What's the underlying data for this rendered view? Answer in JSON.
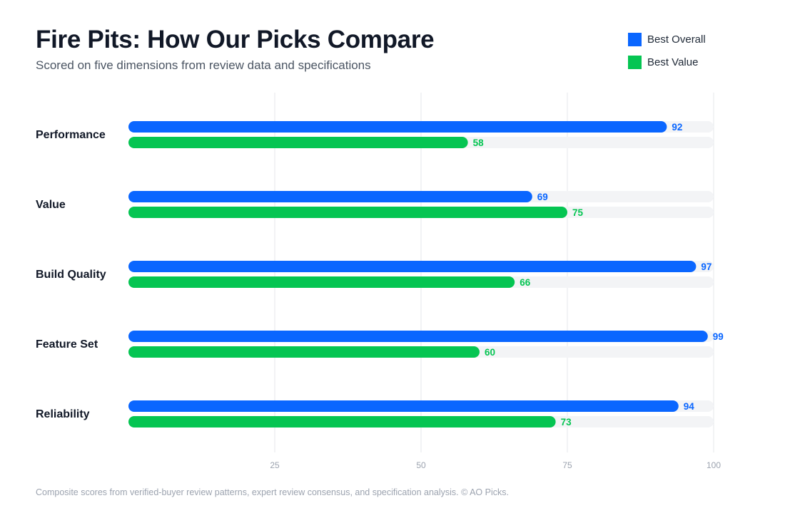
{
  "title": "Fire Pits: How Our Picks Compare",
  "subtitle": "Scored on five dimensions from review data and specifications",
  "footnote": "Composite scores from verified-buyer review patterns, expert review consensus, and specification analysis. © AO Picks.",
  "colors": {
    "best_overall": "#0a66ff",
    "best_value": "#05c552",
    "track": "#f3f4f6",
    "grid": "#e5e7eb"
  },
  "chart_data": {
    "type": "bar",
    "orientation": "horizontal",
    "categories": [
      "Performance",
      "Value",
      "Build Quality",
      "Feature Set",
      "Reliability"
    ],
    "series": [
      {
        "name": "Best Overall",
        "values": [
          92,
          69,
          97,
          99,
          94
        ]
      },
      {
        "name": "Best Value",
        "values": [
          58,
          75,
          66,
          60,
          73
        ]
      }
    ],
    "xlim": [
      0,
      100
    ],
    "xticks": [
      25,
      50,
      75,
      100
    ],
    "grid": true,
    "legend": "top-right"
  }
}
